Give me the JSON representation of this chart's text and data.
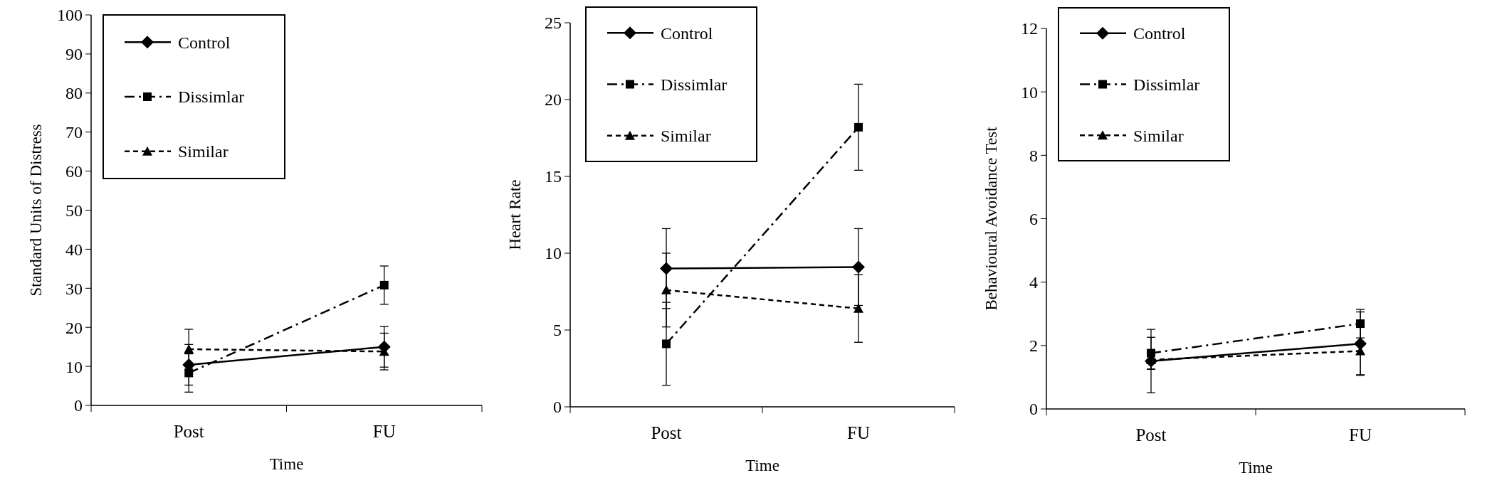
{
  "chart_data": [
    {
      "type": "line",
      "xlabel": "Time",
      "ylabel": "Standard Units of Distress",
      "categories": [
        "Post",
        "FU"
      ],
      "ylim": [
        0,
        100
      ],
      "yticks": [
        0,
        10,
        20,
        30,
        40,
        50,
        60,
        70,
        80,
        90,
        100
      ],
      "legend": "top left",
      "grid": false,
      "series": [
        {
          "name": "Control",
          "color": "#000000",
          "marker": "diamond",
          "line_style": "solid",
          "values": [
            10.4,
            15.0
          ],
          "errors": [
            5.2,
            5.2
          ]
        },
        {
          "name": "Dissimlar",
          "color": "#000000",
          "marker": "square",
          "line_style": "dashdot",
          "values": [
            8.3,
            30.8
          ],
          "errors": [
            4.9,
            4.9
          ]
        },
        {
          "name": "Similar",
          "color": "#000000",
          "marker": "triangle",
          "line_style": "dashed",
          "values": [
            14.4,
            13.8
          ],
          "errors": [
            5.1,
            4.7
          ]
        }
      ]
    },
    {
      "type": "line",
      "xlabel": "Time",
      "ylabel": "Heart Rate",
      "categories": [
        "Post",
        "FU"
      ],
      "ylim": [
        0,
        25
      ],
      "yticks": [
        0,
        5,
        10,
        15,
        20,
        25
      ],
      "legend": "top left",
      "grid": false,
      "series": [
        {
          "name": "Control",
          "color": "#000000",
          "marker": "diamond",
          "line_style": "solid",
          "values": [
            9.0,
            9.1
          ],
          "errors": [
            2.6,
            2.5
          ]
        },
        {
          "name": "Dissimlar",
          "color": "#000000",
          "marker": "square",
          "line_style": "dashdot",
          "values": [
            4.1,
            18.2
          ],
          "errors": [
            2.7,
            2.8
          ]
        },
        {
          "name": "Similar",
          "color": "#000000",
          "marker": "triangle",
          "line_style": "dashed",
          "values": [
            7.6,
            6.4
          ],
          "errors": [
            2.4,
            2.2
          ]
        }
      ]
    },
    {
      "type": "line",
      "xlabel": "Time",
      "ylabel": "Behavioural Avoidance Test",
      "categories": [
        "Post",
        "FU"
      ],
      "ylim": [
        0,
        12
      ],
      "yticks": [
        0,
        2,
        4,
        6,
        8,
        10,
        12
      ],
      "legend": "top left",
      "grid": false,
      "series": [
        {
          "name": "Control",
          "color": "#000000",
          "marker": "diamond",
          "line_style": "solid",
          "values": [
            1.51,
            2.06
          ],
          "errors": [
            1.0,
            1.0
          ]
        },
        {
          "name": "Dissimlar",
          "color": "#000000",
          "marker": "square",
          "line_style": "dashdot",
          "values": [
            1.76,
            2.69
          ],
          "errors": [
            0.5,
            0.45
          ]
        },
        {
          "name": "Similar",
          "color": "#000000",
          "marker": "triangle",
          "line_style": "dashed",
          "values": [
            1.55,
            1.83
          ],
          "errors": [
            0.3,
            0.75
          ]
        }
      ]
    }
  ]
}
